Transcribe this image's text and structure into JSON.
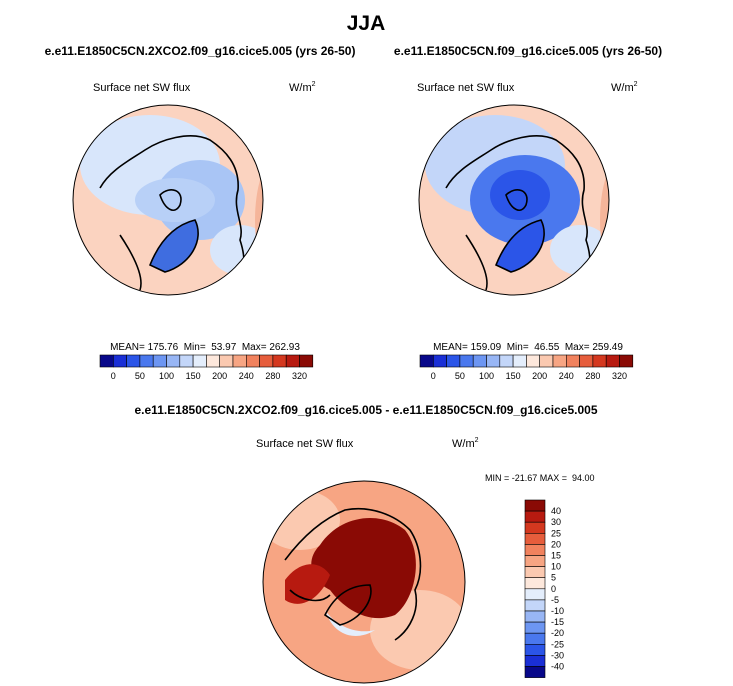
{
  "title": "JJA",
  "panels": [
    {
      "title": "e.e11.E1850C5CN.2XCO2.f09_g16.cice5.005 (yrs 26-50)",
      "variable": "Surface net SW flux",
      "units": {
        "base": "W/m",
        "sup": "2"
      },
      "stats": "MEAN= 175.76  Min=  53.97  Max= 262.93",
      "colorbar_labels": [
        "0",
        "50",
        "100",
        "150",
        "200",
        "240",
        "280",
        "320"
      ]
    },
    {
      "title": "e.e11.E1850C5CN.f09_g16.cice5.005 (yrs 26-50)",
      "variable": "Surface net SW flux",
      "units": {
        "base": "W/m",
        "sup": "2"
      },
      "stats": "MEAN= 159.09  Min=  46.55  Max= 259.49",
      "colorbar_labels": [
        "0",
        "50",
        "100",
        "150",
        "200",
        "240",
        "280",
        "320"
      ]
    }
  ],
  "difference": {
    "title": "e.e11.E1850C5CN.2XCO2.f09_g16.cice5.005 - e.e11.E1850C5CN.f09_g16.cice5.005",
    "variable": "Surface net SW flux",
    "units": {
      "base": "W/m",
      "sup": "2"
    },
    "stats": "MIN = -21.67 MAX =  94.00",
    "colorbar_labels": [
      "40",
      "30",
      "25",
      "20",
      "15",
      "10",
      "5",
      "0",
      "-5",
      "-10",
      "-15",
      "-20",
      "-25",
      "-30",
      "-40"
    ]
  }
}
